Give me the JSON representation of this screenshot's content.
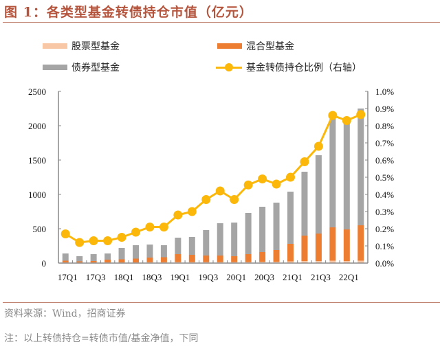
{
  "title": "图 1：各类型基金转债持仓市值（亿元）",
  "legend": [
    {
      "label": "股票型基金",
      "color": "#f8c8a6",
      "kind": "bar"
    },
    {
      "label": "混合型基金",
      "color": "#ed7d31",
      "kind": "bar"
    },
    {
      "label": "债券型基金",
      "color": "#a5a5a5",
      "kind": "bar"
    },
    {
      "label": "基金转债持仓比例（右轴）",
      "color": "#fbb80b",
      "kind": "line"
    }
  ],
  "footer": {
    "source": "资料来源：Wind，招商证券",
    "note": "注：以上转债持仓=转债市值/基金净值，下同"
  },
  "chart_data": {
    "type": "bar",
    "title": "各类型基金转债持仓市值（亿元）",
    "stacked": true,
    "categories": [
      "17Q1",
      "17Q2",
      "17Q3",
      "17Q4",
      "18Q1",
      "18Q2",
      "18Q3",
      "18Q4",
      "19Q1",
      "19Q2",
      "19Q3",
      "19Q4",
      "20Q1",
      "20Q2",
      "20Q3",
      "20Q4",
      "21Q1",
      "21Q2",
      "21Q3",
      "21Q4",
      "22Q1",
      "22Q2"
    ],
    "x_tick_labels": [
      "17Q1",
      "17Q3",
      "18Q1",
      "18Q3",
      "19Q1",
      "19Q3",
      "20Q1",
      "20Q3",
      "21Q1",
      "21Q3",
      "22Q1"
    ],
    "series": [
      {
        "name": "股票型基金",
        "axis": "left",
        "type": "bar",
        "color": "#f8c8a6",
        "values": [
          10,
          8,
          8,
          10,
          10,
          10,
          12,
          12,
          15,
          15,
          15,
          15,
          15,
          15,
          18,
          20,
          25,
          30,
          30,
          35,
          30,
          35
        ]
      },
      {
        "name": "混合型基金",
        "axis": "left",
        "type": "bar",
        "color": "#ed7d31",
        "values": [
          25,
          17,
          22,
          40,
          45,
          55,
          68,
          73,
          115,
          105,
          95,
          95,
          85,
          115,
          142,
          170,
          255,
          370,
          400,
          485,
          460,
          515
        ]
      },
      {
        "name": "债券型基金",
        "axis": "left",
        "type": "bar",
        "color": "#a5a5a5",
        "values": [
          105,
          75,
          100,
          90,
          165,
          195,
          190,
          175,
          240,
          260,
          370,
          470,
          490,
          600,
          660,
          690,
          760,
          930,
          1140,
          1580,
          1590,
          1700
        ]
      },
      {
        "name": "基金转债持仓比例（右轴）",
        "axis": "right",
        "type": "line",
        "color": "#fbb80b",
        "values": [
          0.17,
          0.12,
          0.13,
          0.13,
          0.15,
          0.18,
          0.21,
          0.21,
          0.28,
          0.3,
          0.37,
          0.42,
          0.37,
          0.455,
          0.49,
          0.46,
          0.5,
          0.59,
          0.68,
          0.86,
          0.83,
          0.865
        ]
      }
    ],
    "y_left": {
      "min": 0,
      "max": 2500,
      "ticks": [
        0,
        500,
        1000,
        1500,
        2000,
        2500
      ]
    },
    "y_right": {
      "min": 0,
      "max": 1.0,
      "unit": "%",
      "ticks": [
        "0.0%",
        "0.1%",
        "0.2%",
        "0.3%",
        "0.4%",
        "0.5%",
        "0.6%",
        "0.7%",
        "0.8%",
        "0.9%",
        "1.0%"
      ]
    },
    "xlabel": "",
    "ylabel": "",
    "grid": false,
    "legend_position": "top"
  }
}
